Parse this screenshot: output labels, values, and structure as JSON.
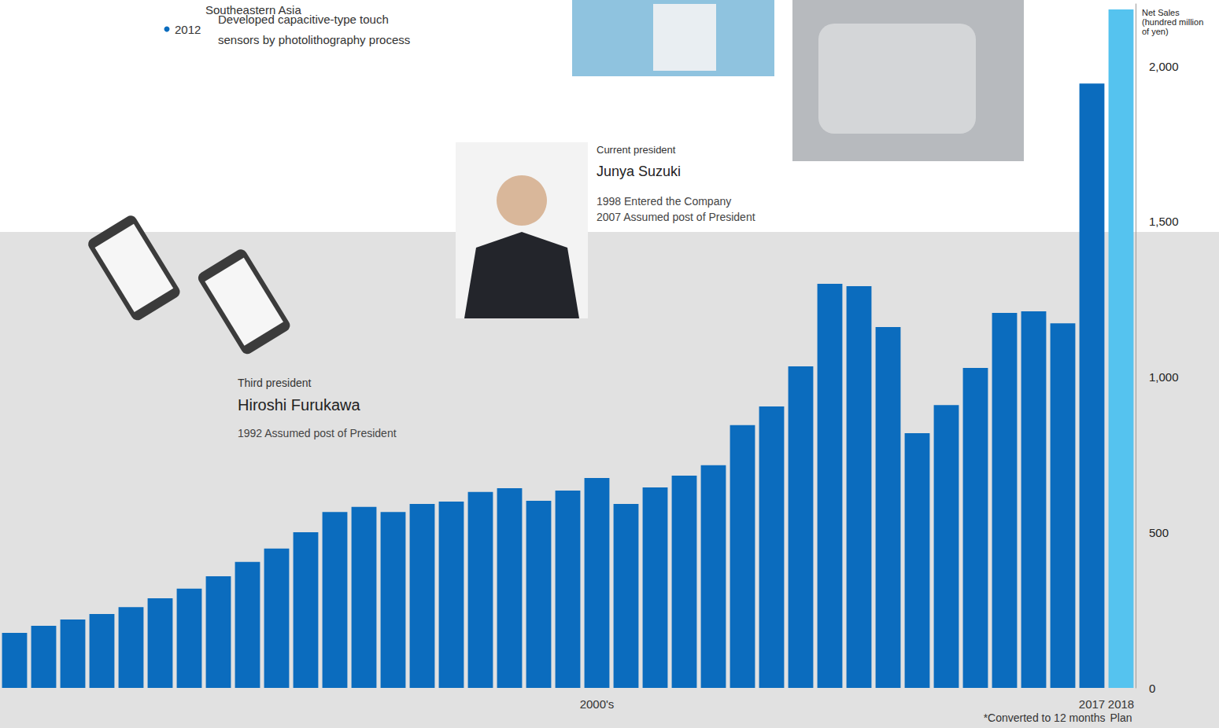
{
  "chart_data": {
    "type": "bar",
    "y_label": "Net Sales (hundred million of yen)",
    "categories": [
      null,
      null,
      null,
      null,
      null,
      null,
      null,
      null,
      null,
      null,
      null,
      null,
      null,
      null,
      null,
      null,
      null,
      null,
      null,
      null,
      "2000's",
      null,
      null,
      null,
      null,
      null,
      null,
      null,
      null,
      null,
      null,
      null,
      null,
      null,
      null,
      null,
      null,
      "2017",
      "2018"
    ],
    "values": [
      177,
      200,
      220,
      238,
      260,
      288,
      319,
      359,
      405,
      448,
      501,
      566,
      582,
      566,
      592,
      599,
      630,
      642,
      602,
      635,
      675,
      592,
      645,
      683,
      716,
      845,
      905,
      1034,
      1300,
      1292,
      1161,
      819,
      910,
      1029,
      1206,
      1211,
      1173,
      1944,
      2182
    ],
    "colors": [
      "#0b6cbe",
      "#0b6cbe",
      "#0b6cbe",
      "#0b6cbe",
      "#0b6cbe",
      "#0b6cbe",
      "#0b6cbe",
      "#0b6cbe",
      "#0b6cbe",
      "#0b6cbe",
      "#0b6cbe",
      "#0b6cbe",
      "#0b6cbe",
      "#0b6cbe",
      "#0b6cbe",
      "#0b6cbe",
      "#0b6cbe",
      "#0b6cbe",
      "#0b6cbe",
      "#0b6cbe",
      "#0b6cbe",
      "#0b6cbe",
      "#0b6cbe",
      "#0b6cbe",
      "#0b6cbe",
      "#0b6cbe",
      "#0b6cbe",
      "#0b6cbe",
      "#0b6cbe",
      "#0b6cbe",
      "#0b6cbe",
      "#0b6cbe",
      "#0b6cbe",
      "#0b6cbe",
      "#0b6cbe",
      "#0b6cbe",
      "#0b6cbe",
      "#0b6cbe",
      "#55c3ef"
    ],
    "ylim": [
      0,
      2200
    ],
    "yticks": [
      0,
      500,
      {
        "value": 1000,
        "label": "1,000"
      },
      {
        "value": 1500,
        "label": "1,500"
      },
      {
        "value": 2000,
        "label": "2,000"
      }
    ],
    "grid": false,
    "annotations": {
      "milestone_prev": "Southeastern Asia",
      "milestone": {
        "year": "2012",
        "text": "Developed capacitive-type touch sensors by photolithography process"
      },
      "current_president": {
        "role": "Current president",
        "name": "Junya Suzuki",
        "history": [
          "1998 Entered the Company",
          "2007 Assumed post of President"
        ]
      },
      "third_president": {
        "role": "Third president",
        "name": "Hiroshi Furukawa",
        "history": [
          "1992 Assumed post of President"
        ]
      },
      "footnote": "*Converted to 12 months",
      "plan_label": "Plan"
    }
  }
}
